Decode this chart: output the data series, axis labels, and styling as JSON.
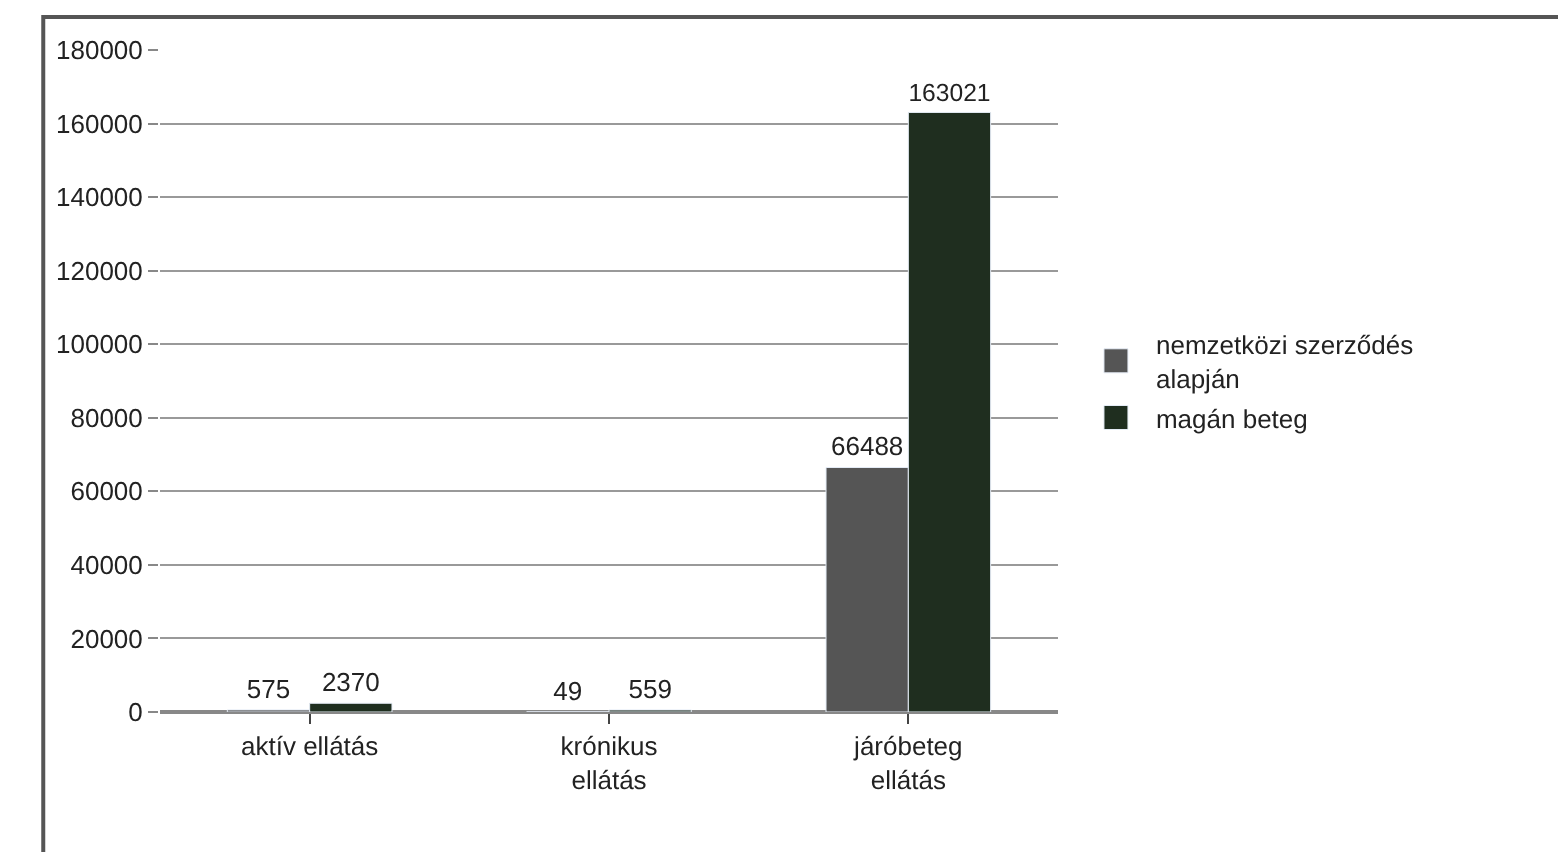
{
  "chart_data": {
    "type": "bar",
    "categories": [
      "aktív ellátás",
      "krónikus\nellátás",
      "járóbeteg\nellátás"
    ],
    "series": [
      {
        "name": "nemzetközi szerződés\nalapján",
        "color": "#555555",
        "values": [
          575,
          49,
          66488
        ]
      },
      {
        "name": "magán beteg",
        "color": "#1f2e1f",
        "values": [
          2370,
          559,
          163021
        ]
      }
    ],
    "ylim": [
      0,
      180000
    ],
    "yticks": [
      0,
      20000,
      40000,
      60000,
      80000,
      100000,
      120000,
      140000,
      160000,
      180000
    ],
    "grid": "y",
    "legend": "right",
    "data_labels": true
  }
}
